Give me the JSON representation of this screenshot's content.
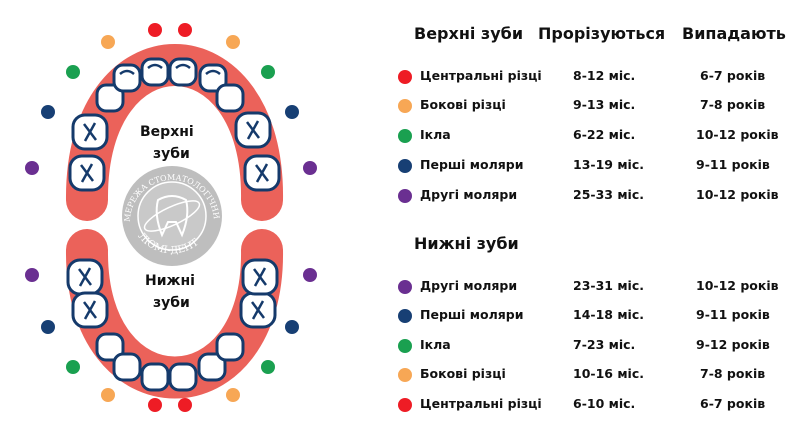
{
  "colors": {
    "central": "#ee1c25",
    "lateral": "#f7a755",
    "canine": "#1aa050",
    "first_molar": "#173f74",
    "second_molar": "#6a2f91",
    "gum": "#eb625a",
    "tooth_outline": "#153a6b"
  },
  "diagram": {
    "upper_label_1": "Верхні",
    "upper_label_2": "зуби",
    "lower_label_1": "Нижні",
    "lower_label_2": "зуби"
  },
  "logo": {
    "name": "ЛЮМІ-ДЕНТ",
    "tagline": "МЕРЕЖА СТОМАТОЛОГІЧНИХ КЛІНІК"
  },
  "table": {
    "upper_header": "Верхні зуби",
    "col_erupt": "Прорізуються",
    "col_fall": "Випадають",
    "upper_rows": [
      {
        "type": "central",
        "name": "Центральні різці",
        "erupt": "8-12 міс.",
        "fall": "6-7 років"
      },
      {
        "type": "lateral",
        "name": "Бокові різці",
        "erupt": "9-13 міс.",
        "fall": "7-8 років"
      },
      {
        "type": "canine",
        "name": "Ікла",
        "erupt": "6-22 міс.",
        "fall": "10-12 років"
      },
      {
        "type": "first_molar",
        "name": "Перші моляри",
        "erupt": "13-19 міс.",
        "fall": "9-11 років"
      },
      {
        "type": "second_molar",
        "name": "Другі моляри",
        "erupt": "25-33 міс.",
        "fall": "10-12 років"
      }
    ],
    "lower_header": "Нижні зуби",
    "lower_rows": [
      {
        "type": "second_molar",
        "name": "Другі моляри",
        "erupt": "23-31 міс.",
        "fall": "10-12 років"
      },
      {
        "type": "first_molar",
        "name": "Перші моляри",
        "erupt": "14-18 міс.",
        "fall": "9-11 років"
      },
      {
        "type": "canine",
        "name": "Ікла",
        "erupt": "7-23 міс.",
        "fall": "9-12 років"
      },
      {
        "type": "lateral",
        "name": "Бокові різці",
        "erupt": "10-16 міс.",
        "fall": "7-8 років"
      },
      {
        "type": "central",
        "name": "Центральні різці",
        "erupt": "6-10 міс.",
        "fall": "6-7 років"
      }
    ]
  }
}
